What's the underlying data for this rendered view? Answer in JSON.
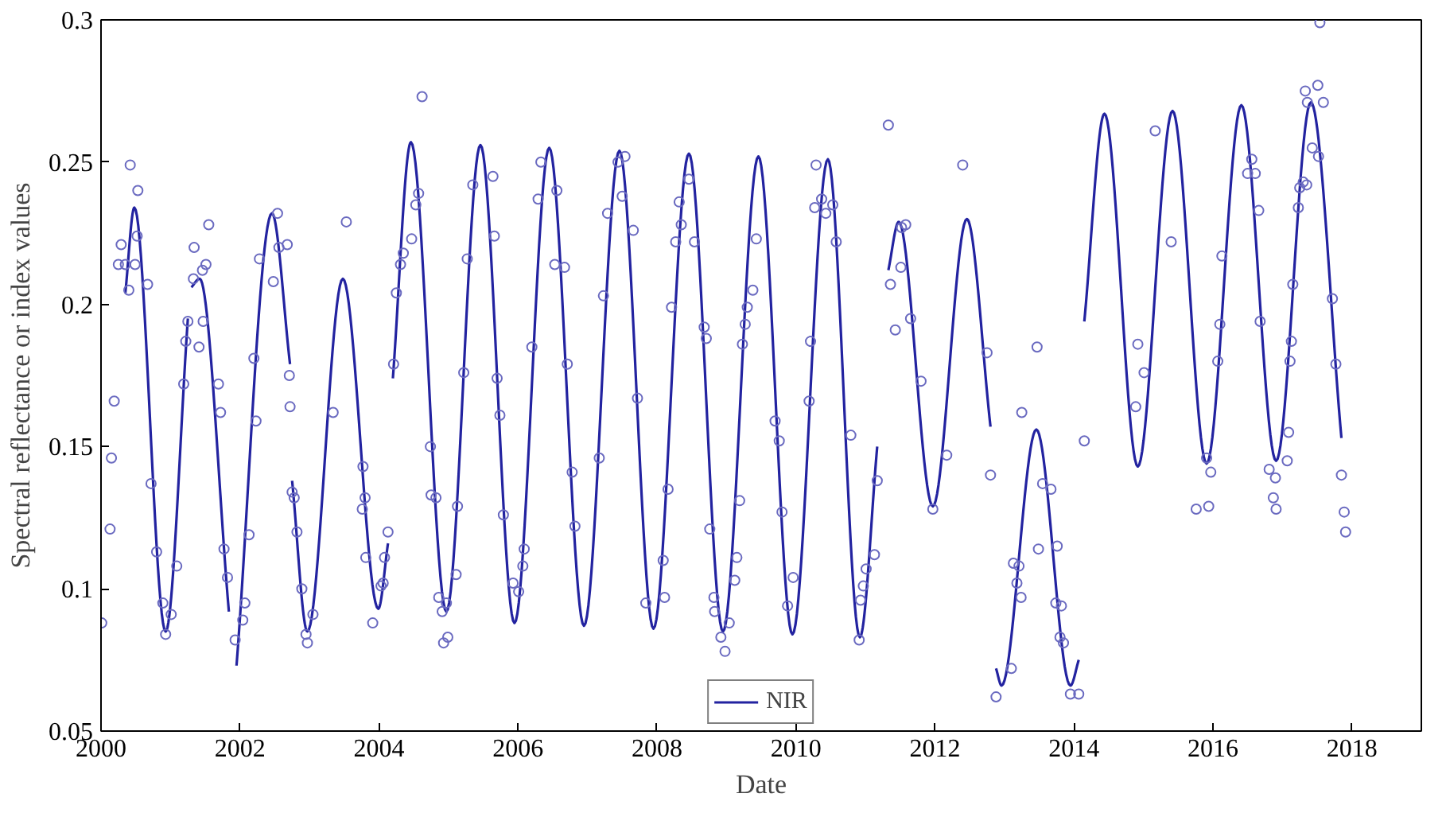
{
  "chart_data": {
    "type": "line",
    "xlabel": "Date",
    "ylabel": "Spectral reflectance or index values",
    "xlim": [
      2000,
      2019
    ],
    "ylim": [
      0.05,
      0.3
    ],
    "xticks": [
      2000,
      2002,
      2004,
      2006,
      2008,
      2010,
      2012,
      2014,
      2016,
      2018
    ],
    "yticks": [
      0.05,
      0.1,
      0.15,
      0.2,
      0.25,
      0.3
    ],
    "grid": false,
    "legend": "bottom",
    "series": [
      {
        "name": "NIR",
        "color": "#2323a0",
        "line_style": "solid",
        "x": [
          2000.35,
          2000.48,
          2000.93,
          2001.25,
          2001.27,
          2001.3,
          2001.42,
          2001.84,
          2001.9,
          2001.95,
          2002.46,
          2002.72,
          2002.73,
          2002.75,
          2002.97,
          2003.48,
          2003.99,
          2004.13,
          2004.16,
          2004.2,
          2004.46,
          2004.97,
          2005.46,
          2005.95,
          2006.45,
          2006.95,
          2007.46,
          2007.95,
          2008.46,
          2008.95,
          2009.46,
          2009.95,
          2010.46,
          2010.92,
          2011.17,
          2011.25,
          2011.33,
          2011.48,
          2011.97,
          2012.46,
          2012.8,
          2012.84,
          2012.88,
          2012.96,
          2013.46,
          2013.95,
          2014.07,
          2014.11,
          2014.15,
          2014.44,
          2014.92,
          2015.42,
          2015.91,
          2016.41,
          2016.91,
          2017.41,
          2017.85
        ],
        "values": [
          0.204,
          0.234,
          0.085,
          0.195,
          null,
          0.206,
          0.209,
          0.092,
          null,
          0.073,
          0.232,
          0.179,
          null,
          0.138,
          0.085,
          0.209,
          0.093,
          0.116,
          null,
          0.174,
          0.257,
          0.092,
          0.256,
          0.088,
          0.255,
          0.087,
          0.254,
          0.086,
          0.253,
          0.085,
          0.252,
          0.084,
          0.251,
          0.083,
          0.15,
          null,
          0.212,
          0.229,
          0.129,
          0.23,
          0.157,
          null,
          0.072,
          0.066,
          0.156,
          0.066,
          0.075,
          null,
          0.194,
          0.267,
          0.143,
          0.268,
          0.144,
          0.27,
          0.145,
          0.271,
          0.153
        ]
      },
      {
        "type": "scatter",
        "color": "#6a6ac0",
        "marker": "circle",
        "x": [
          2000.01,
          2000.13,
          2000.15,
          2000.19,
          2000.25,
          2000.29,
          2000.35,
          2000.4,
          2000.42,
          2000.49,
          2000.52,
          2000.53,
          2000.67,
          2000.72,
          2000.8,
          2000.89,
          2000.93,
          2001.01,
          2001.09,
          2001.19,
          2001.22,
          2001.25,
          2001.34,
          2001.33,
          2001.41,
          2001.47,
          2001.46,
          2001.51,
          2001.55,
          2001.69,
          2001.72,
          2001.77,
          2001.82,
          2001.93,
          2002.04,
          2002.07,
          2002.13,
          2002.2,
          2002.23,
          2002.28,
          2002.48,
          2002.54,
          2002.56,
          2002.68,
          2002.71,
          2002.72,
          2002.75,
          2002.78,
          2002.82,
          2002.89,
          2002.95,
          2002.97,
          2003.05,
          2003.34,
          2003.53,
          2003.77,
          2003.8,
          2003.76,
          2003.81,
          2003.91,
          2004.03,
          2004.06,
          2004.08,
          2004.13,
          2004.21,
          2004.25,
          2004.31,
          2004.62,
          2004.35,
          2004.47,
          2004.53,
          2004.57,
          2004.74,
          2004.75,
          2004.82,
          2004.86,
          2004.91,
          2004.97,
          2004.93,
          2004.99,
          2005.13,
          2005.11,
          2005.22,
          2005.27,
          2005.35,
          2005.64,
          2005.66,
          2005.7,
          2005.74,
          2005.79,
          2005.93,
          2006.01,
          2006.07,
          2006.09,
          2006.2,
          2006.29,
          2006.33,
          2006.53,
          2006.56,
          2006.67,
          2006.71,
          2006.78,
          2006.82,
          2007.17,
          2007.23,
          2007.29,
          2007.44,
          2007.5,
          2007.54,
          2007.66,
          2007.72,
          2007.84,
          2008.11,
          2008.09,
          2008.16,
          2008.21,
          2008.27,
          2008.32,
          2008.35,
          2008.46,
          2008.54,
          2008.68,
          2008.71,
          2008.76,
          2008.82,
          2008.83,
          2008.92,
          2008.98,
          2009.04,
          2009.12,
          2009.15,
          2009.19,
          2009.23,
          2009.27,
          2009.3,
          2009.38,
          2009.43,
          2009.7,
          2009.76,
          2009.8,
          2009.88,
          2009.96,
          2010.19,
          2010.21,
          2010.27,
          2010.29,
          2010.37,
          2010.43,
          2010.53,
          2010.58,
          2010.79,
          2010.91,
          2010.93,
          2010.97,
          2011.01,
          2011.13,
          2011.17,
          2011.33,
          2011.36,
          2011.43,
          2011.51,
          2011.52,
          2011.58,
          2011.65,
          2011.8,
          2011.97,
          2012.17,
          2012.4,
          2012.75,
          2012.8,
          2012.88,
          2013.1,
          2013.13,
          2013.21,
          2013.18,
          2013.24,
          2013.25,
          2013.47,
          2013.49,
          2013.55,
          2013.67,
          2013.76,
          2013.74,
          2013.82,
          2013.8,
          2013.85,
          2013.95,
          2014.07,
          2014.15,
          2014.89,
          2014.92,
          2015.01,
          2015.17,
          2015.4,
          2015.76,
          2015.94,
          2015.91,
          2015.97,
          2016.07,
          2016.1,
          2016.13,
          2016.5,
          2016.56,
          2016.61,
          2016.66,
          2016.68,
          2016.81,
          2016.9,
          2016.87,
          2016.91,
          2017.07,
          2017.09,
          2017.11,
          2017.13,
          2017.15,
          2017.23,
          2017.25,
          2017.3,
          2017.35,
          2017.33,
          2017.36,
          2017.51,
          2017.59,
          2017.43,
          2017.52,
          2017.54,
          2017.72,
          2017.77,
          2017.85,
          2017.89,
          2017.91
        ],
        "values": [
          0.088,
          0.121,
          0.146,
          0.166,
          0.214,
          0.221,
          0.214,
          0.205,
          0.249,
          0.214,
          0.224,
          0.24,
          0.207,
          0.137,
          0.113,
          0.095,
          0.084,
          0.091,
          0.108,
          0.172,
          0.187,
          0.194,
          0.22,
          0.209,
          0.185,
          0.194,
          0.212,
          0.214,
          0.228,
          0.172,
          0.162,
          0.114,
          0.104,
          0.082,
          0.089,
          0.095,
          0.119,
          0.181,
          0.159,
          0.216,
          0.208,
          0.232,
          0.22,
          0.221,
          0.175,
          0.164,
          0.134,
          0.132,
          0.12,
          0.1,
          0.084,
          0.081,
          0.091,
          0.162,
          0.229,
          0.143,
          0.132,
          0.128,
          0.111,
          0.088,
          0.101,
          0.102,
          0.111,
          0.12,
          0.179,
          0.204,
          0.214,
          0.273,
          0.218,
          0.223,
          0.235,
          0.239,
          0.15,
          0.133,
          0.132,
          0.097,
          0.092,
          0.095,
          0.081,
          0.083,
          0.129,
          0.105,
          0.176,
          0.216,
          0.242,
          0.245,
          0.224,
          0.174,
          0.161,
          0.126,
          0.102,
          0.099,
          0.108,
          0.114,
          0.185,
          0.237,
          0.25,
          0.214,
          0.24,
          0.213,
          0.179,
          0.141,
          0.122,
          0.146,
          0.203,
          0.232,
          0.25,
          0.238,
          0.252,
          0.226,
          0.167,
          0.095,
          0.097,
          0.11,
          0.135,
          0.199,
          0.222,
          0.236,
          0.228,
          0.244,
          0.222,
          0.192,
          0.188,
          0.121,
          0.097,
          0.092,
          0.083,
          0.078,
          0.088,
          0.103,
          0.111,
          0.131,
          0.186,
          0.193,
          0.199,
          0.205,
          0.223,
          0.159,
          0.152,
          0.127,
          0.094,
          0.104,
          0.166,
          0.187,
          0.234,
          0.249,
          0.237,
          0.232,
          0.235,
          0.222,
          0.154,
          0.082,
          0.096,
          0.101,
          0.107,
          0.112,
          0.138,
          0.263,
          0.207,
          0.191,
          0.213,
          0.227,
          0.228,
          0.195,
          0.173,
          0.128,
          0.147,
          0.249,
          0.183,
          0.14,
          0.062,
          0.072,
          0.109,
          0.108,
          0.102,
          0.097,
          0.162,
          0.185,
          0.114,
          0.137,
          0.135,
          0.115,
          0.095,
          0.094,
          0.083,
          0.081,
          0.063,
          0.063,
          0.152,
          0.164,
          0.186,
          0.176,
          0.261,
          0.222,
          0.128,
          0.129,
          0.146,
          0.141,
          0.18,
          0.193,
          0.217,
          0.246,
          0.251,
          0.246,
          0.233,
          0.194,
          0.142,
          0.139,
          0.132,
          0.128,
          0.145,
          0.155,
          0.18,
          0.187,
          0.207,
          0.234,
          0.241,
          0.243,
          0.242,
          0.275,
          0.271,
          0.277,
          0.271,
          0.255,
          0.252,
          0.299,
          0.202,
          0.179,
          0.14,
          0.127,
          0.12
        ]
      }
    ]
  }
}
